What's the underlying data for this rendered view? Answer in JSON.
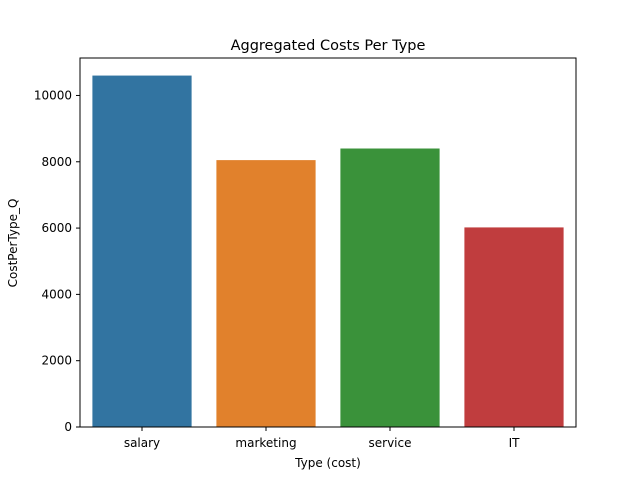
{
  "chart_data": {
    "type": "bar",
    "title": "Aggregated Costs Per Type",
    "xlabel": "Type (cost)",
    "ylabel": "CostPerType_Q",
    "categories": [
      "salary",
      "marketing",
      "service",
      "IT"
    ],
    "values": [
      10600,
      8050,
      8400,
      6020
    ],
    "colors": [
      "#3274a1",
      "#e1812c",
      "#3a923a",
      "#c03d3e"
    ],
    "ylim": [
      0,
      11130
    ],
    "yticks": [
      0,
      2000,
      4000,
      6000,
      8000,
      10000
    ],
    "grid": false,
    "legend": "none"
  }
}
